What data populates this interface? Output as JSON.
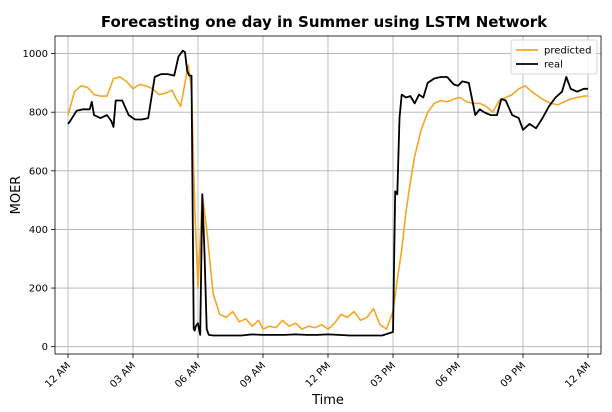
{
  "chart_data": {
    "type": "line",
    "title": "Forecasting one day in Summer using LSTM Network",
    "xlabel": "Time",
    "ylabel": "MOER",
    "x_ticks": [
      "12 AM",
      "03 AM",
      "06 AM",
      "09 AM",
      "12 PM",
      "03 PM",
      "06 PM",
      "09 PM",
      "12 AM"
    ],
    "y_ticks": [
      "0",
      "200",
      "400",
      "600",
      "800",
      "1000"
    ],
    "xlim_hours": [
      -0.6,
      24.6
    ],
    "ylim": [
      -25,
      1060
    ],
    "grid": true,
    "legend_position": "top-right",
    "series": [
      {
        "name": "predicted",
        "color": "#f5a623",
        "x": [
          0,
          0.3,
          0.6,
          0.9,
          1.2,
          1.5,
          1.8,
          2.1,
          2.4,
          2.7,
          3.0,
          3.3,
          3.6,
          3.9,
          4.2,
          4.5,
          4.8,
          5.0,
          5.2,
          5.4,
          5.55,
          5.7,
          5.85,
          6.0,
          6.2,
          6.4,
          6.7,
          7.0,
          7.3,
          7.6,
          7.9,
          8.2,
          8.5,
          8.8,
          9.0,
          9.3,
          9.6,
          9.9,
          10.2,
          10.5,
          10.8,
          11.1,
          11.4,
          11.7,
          12.0,
          12.3,
          12.6,
          12.9,
          13.2,
          13.5,
          13.8,
          14.1,
          14.4,
          14.7,
          15.0,
          15.2,
          15.4,
          15.6,
          15.8,
          16.0,
          16.3,
          16.6,
          16.9,
          17.2,
          17.5,
          17.8,
          18.1,
          18.4,
          18.7,
          19.0,
          19.3,
          19.6,
          19.9,
          20.2,
          20.5,
          20.8,
          21.1,
          21.4,
          21.7,
          22.0,
          22.3,
          22.6,
          22.9,
          23.2,
          23.5,
          23.8,
          24.0
        ],
        "values": [
          790,
          870,
          890,
          885,
          860,
          855,
          855,
          915,
          920,
          905,
          880,
          895,
          890,
          880,
          860,
          865,
          875,
          845,
          820,
          900,
          960,
          880,
          480,
          200,
          520,
          400,
          180,
          110,
          100,
          120,
          85,
          95,
          70,
          90,
          60,
          70,
          65,
          90,
          70,
          80,
          60,
          70,
          65,
          75,
          60,
          80,
          110,
          100,
          120,
          90,
          100,
          130,
          75,
          60,
          120,
          230,
          330,
          460,
          560,
          650,
          740,
          800,
          830,
          840,
          835,
          845,
          850,
          835,
          830,
          830,
          820,
          800,
          840,
          850,
          860,
          880,
          890,
          870,
          855,
          840,
          830,
          825,
          835,
          845,
          850,
          855,
          855
        ]
      },
      {
        "name": "real",
        "color": "#000000",
        "x": [
          0,
          0.1,
          0.4,
          0.7,
          1.0,
          1.1,
          1.2,
          1.5,
          1.8,
          2.0,
          2.1,
          2.2,
          2.5,
          2.8,
          3.0,
          3.1,
          3.4,
          3.7,
          4.0,
          4.3,
          4.6,
          4.9,
          5.1,
          5.2,
          5.3,
          5.4,
          5.5,
          5.6,
          5.7,
          5.8,
          5.85,
          5.9,
          6.0,
          6.1,
          6.2,
          6.3,
          6.4,
          6.5,
          6.7,
          7.0,
          7.5,
          8.0,
          8.5,
          9.0,
          9.5,
          10.0,
          10.5,
          11.0,
          11.5,
          12.0,
          12.5,
          13.0,
          13.5,
          14.0,
          14.5,
          15.0,
          15.1,
          15.2,
          15.3,
          15.4,
          15.6,
          15.8,
          16.0,
          16.2,
          16.4,
          16.6,
          16.9,
          17.2,
          17.5,
          17.8,
          18.0,
          18.2,
          18.5,
          18.8,
          19.0,
          19.2,
          19.5,
          19.8,
          20.0,
          20.2,
          20.5,
          20.8,
          21.0,
          21.3,
          21.6,
          21.9,
          22.2,
          22.5,
          22.8,
          23.0,
          23.2,
          23.5,
          23.8,
          24.0
        ],
        "values": [
          760,
          770,
          805,
          810,
          810,
          835,
          790,
          780,
          790,
          770,
          750,
          840,
          840,
          790,
          780,
          775,
          775,
          780,
          920,
          930,
          930,
          925,
          990,
          1000,
          1010,
          1005,
          940,
          925,
          925,
          60,
          55,
          70,
          80,
          40,
          520,
          320,
          60,
          40,
          38,
          38,
          38,
          38,
          42,
          40,
          40,
          40,
          42,
          40,
          40,
          42,
          40,
          38,
          38,
          38,
          38,
          50,
          530,
          520,
          780,
          860,
          850,
          855,
          830,
          860,
          850,
          900,
          915,
          920,
          920,
          895,
          890,
          905,
          900,
          790,
          810,
          800,
          790,
          790,
          845,
          840,
          790,
          780,
          740,
          760,
          745,
          780,
          820,
          850,
          870,
          920,
          880,
          870,
          880,
          880
        ]
      }
    ]
  }
}
